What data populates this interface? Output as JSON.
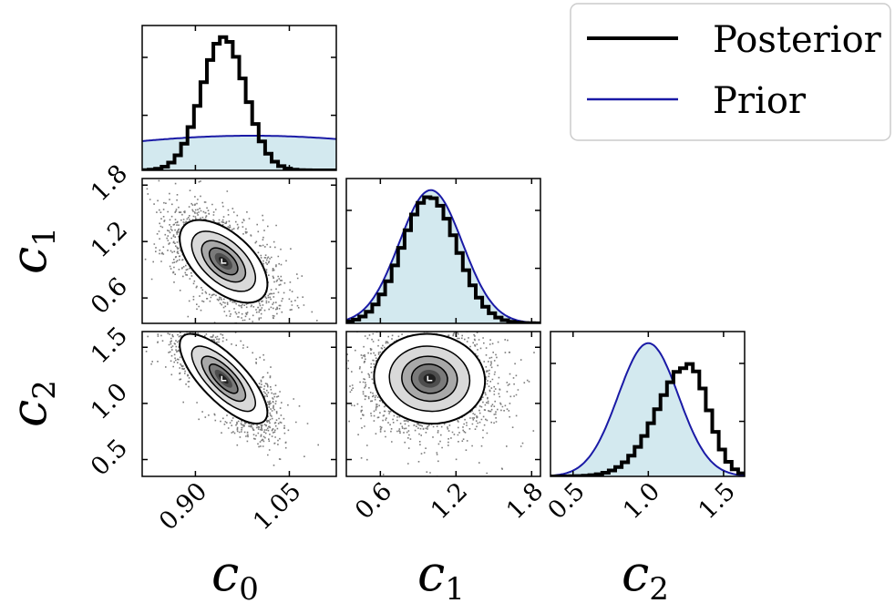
{
  "chart_data": {
    "type": "corner",
    "parameters": [
      "c0",
      "c1",
      "c2"
    ],
    "axis_labels": [
      {
        "base": "c",
        "sub": "0"
      },
      {
        "base": "c",
        "sub": "1"
      },
      {
        "base": "c",
        "sub": "2"
      }
    ],
    "ranges": [
      [
        0.815,
        1.125
      ],
      [
        0.33,
        1.87
      ],
      [
        0.35,
        1.64
      ]
    ],
    "ticks": {
      "c0": [
        "0.90",
        "1.05"
      ],
      "c1": [
        "0.6",
        "1.2",
        "1.8"
      ],
      "c2": [
        "0.5",
        "1.0",
        "1.5"
      ]
    },
    "tick_values": {
      "c0": [
        0.9,
        1.05
      ],
      "c1": [
        0.6,
        1.2,
        1.8
      ],
      "c2": [
        0.5,
        1.0,
        1.5
      ]
    },
    "posterior": {
      "c0": {
        "mean": 0.945,
        "sd": 0.035
      },
      "c1": {
        "mean": 0.99,
        "sd": 0.22
      },
      "c2": {
        "mean": 1.22,
        "sd": 0.2
      }
    },
    "prior": {
      "c0": {
        "mean": 0.99,
        "sd": 0.3
      },
      "c1": {
        "mean": 1.0,
        "sd": 0.25
      },
      "c2": {
        "mean": 1.0,
        "sd": 0.2
      }
    },
    "correlations": {
      "c0_c1": -0.55,
      "c0_c2": -0.75,
      "c1_c2": -0.05
    },
    "legend": {
      "position": "top-right",
      "entries": [
        {
          "label": "Posterior",
          "color": "#000000"
        },
        {
          "label": "Prior",
          "color": "#1a1aa6"
        }
      ]
    },
    "colors": {
      "prior_fill": "#d3e9ef",
      "prior_line": "#1a1aa6",
      "posterior_line": "#000000"
    }
  }
}
